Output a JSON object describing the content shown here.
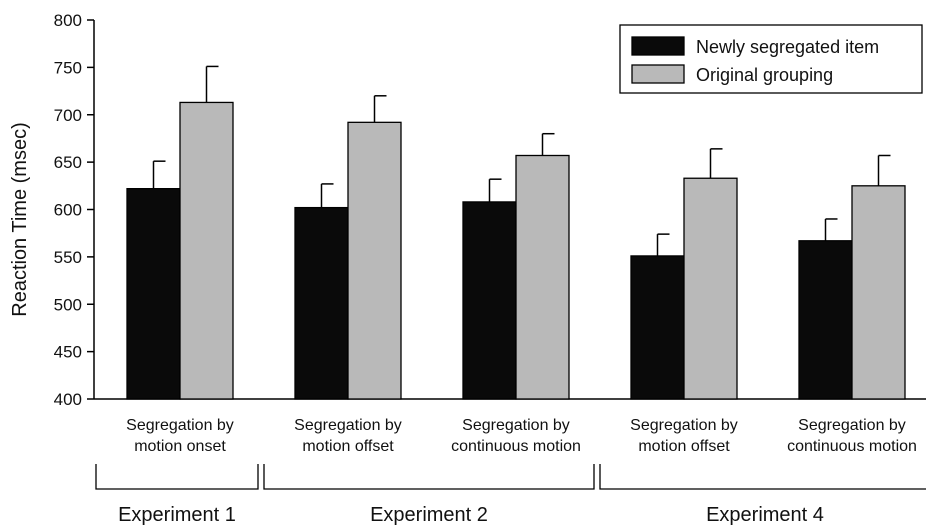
{
  "chart_data": {
    "type": "bar",
    "title": "",
    "xlabel": "",
    "ylabel": "Reaction Time (msec)",
    "ylim": [
      400,
      800
    ],
    "yticks": [
      400,
      450,
      500,
      550,
      600,
      650,
      700,
      750,
      800
    ],
    "grid": false,
    "legend_position": "top-right",
    "categories": [
      [
        "Segregation by",
        "motion onset"
      ],
      [
        "Segregation by",
        "motion offset"
      ],
      [
        "Segregation by",
        "continuous motion"
      ],
      [
        "Segregation by",
        "motion offset"
      ],
      [
        "Segregation by",
        "continuous motion"
      ]
    ],
    "series": [
      {
        "name": "Newly segregated item",
        "color": "#0a0a0a",
        "values": [
          622,
          602,
          608,
          551,
          567
        ],
        "error": [
          29,
          25,
          24,
          23,
          23
        ]
      },
      {
        "name": "Original grouping",
        "color": "#b9b9b9",
        "values": [
          713,
          692,
          657,
          633,
          625
        ],
        "error": [
          38,
          28,
          23,
          31,
          32
        ]
      }
    ],
    "groups": [
      {
        "label": "Experiment 1",
        "categories": [
          0
        ]
      },
      {
        "label": "Experiment 2",
        "categories": [
          1,
          2
        ]
      },
      {
        "label": "Experiment 4",
        "categories": [
          3,
          4
        ]
      }
    ]
  }
}
